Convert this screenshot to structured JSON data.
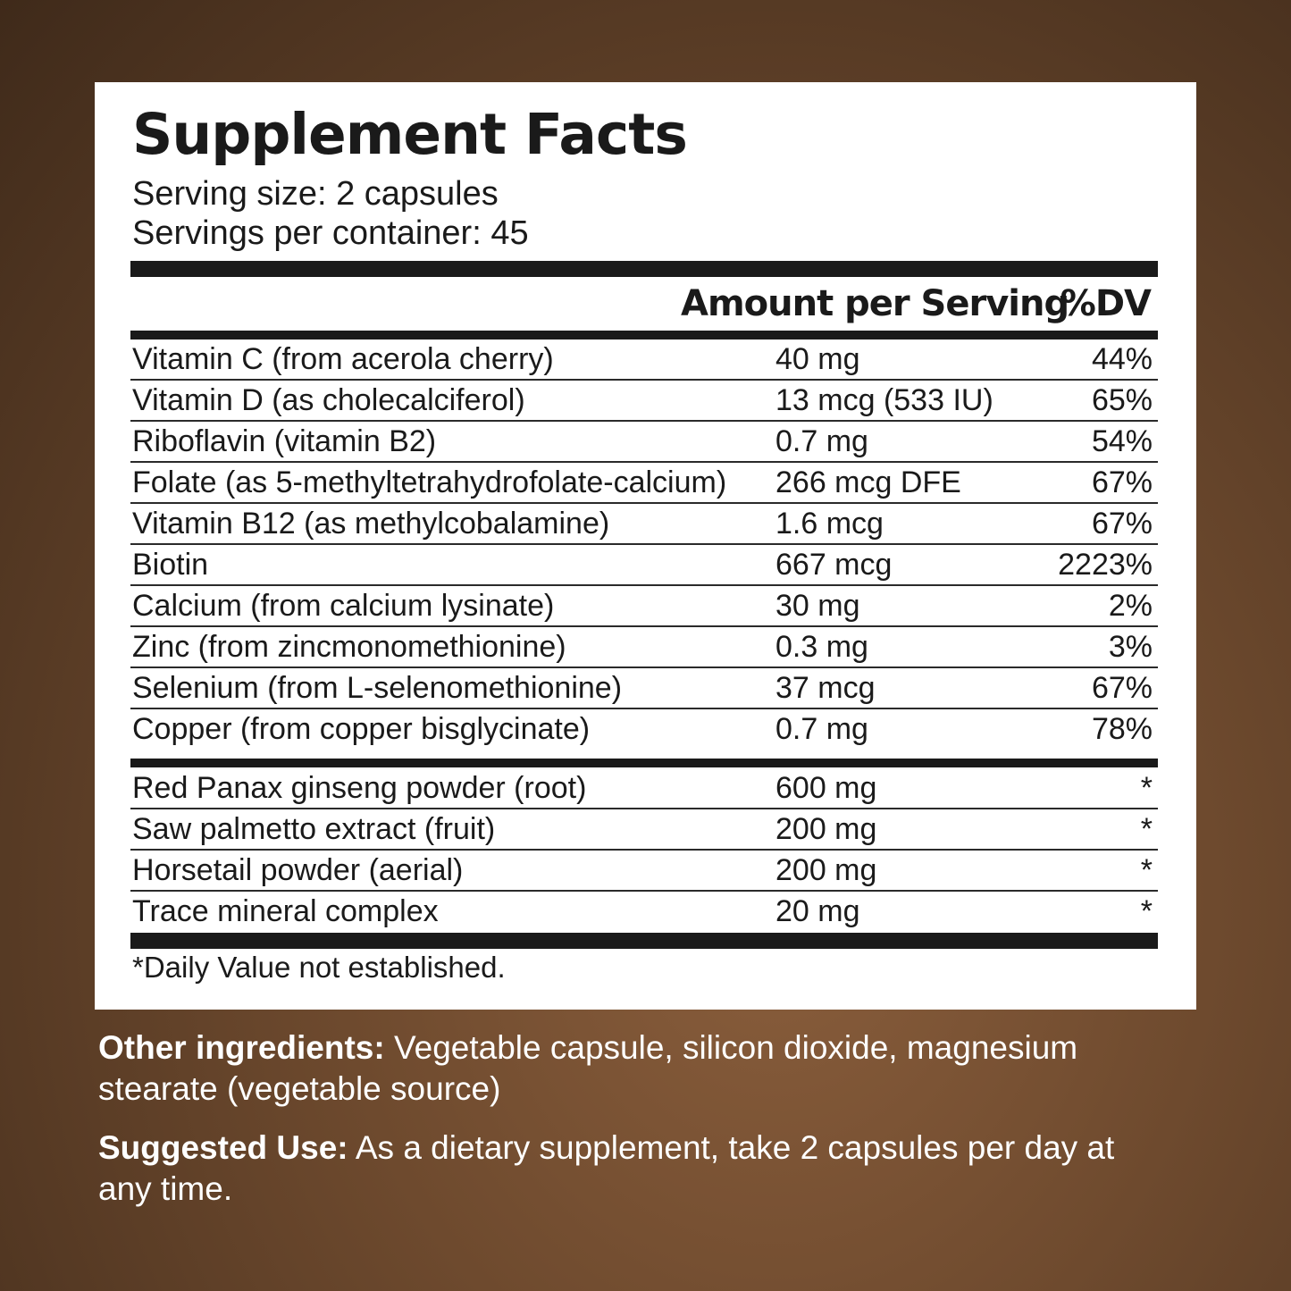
{
  "title": "Supplement Facts",
  "serving_size": "Serving size: 2 capsules",
  "servings_per_container": "Servings per container: 45",
  "header": {
    "amount": "Amount per Serving",
    "dv": "%DV"
  },
  "vitamins": [
    {
      "name": "Vitamin C (from acerola cherry)",
      "amount": "40 mg",
      "dv": "44%"
    },
    {
      "name": "Vitamin D (as cholecalciferol)",
      "amount": "13 mcg (533 IU)",
      "dv": "65%"
    },
    {
      "name": "Riboflavin (vitamin B2)",
      "amount": "0.7 mg",
      "dv": "54%"
    },
    {
      "name": "Folate (as 5-methyltetrahydrofolate-calcium)",
      "amount": "266 mcg DFE",
      "dv": "67%"
    },
    {
      "name": "Vitamin B12 (as methylcobalamine)",
      "amount": "1.6 mcg",
      "dv": "67%"
    },
    {
      "name": "Biotin",
      "amount": "667 mcg",
      "dv": "2223%"
    },
    {
      "name": "Calcium (from calcium lysinate)",
      "amount": "30 mg",
      "dv": "2%"
    },
    {
      "name": "Zinc (from zincmonomethionine)",
      "amount": "0.3 mg",
      "dv": "3%"
    },
    {
      "name": "Selenium (from L-selenomethionine)",
      "amount": "37 mcg",
      "dv": "67%"
    },
    {
      "name": "Copper (from copper bisglycinate)",
      "amount": "0.7 mg",
      "dv": "78%"
    }
  ],
  "botanicals": [
    {
      "name": "Red Panax ginseng powder (root)",
      "amount": "600 mg",
      "dv": "*"
    },
    {
      "name": "Saw palmetto extract (fruit)",
      "amount": "200 mg",
      "dv": "*"
    },
    {
      "name": "Horsetail powder (aerial)",
      "amount": "200 mg",
      "dv": "*"
    },
    {
      "name": "Trace mineral complex",
      "amount": "20 mg",
      "dv": "*"
    }
  ],
  "footnote": "*Daily Value not established.",
  "other_ingredients": {
    "label": "Other ingredients:",
    "text": " Vegetable capsule, silicon dioxide, magnesium stearate (vegetable source)"
  },
  "suggested_use": {
    "label": "Suggested Use:",
    "text": " As a dietary supplement, take 2 capsules per day at any time."
  }
}
